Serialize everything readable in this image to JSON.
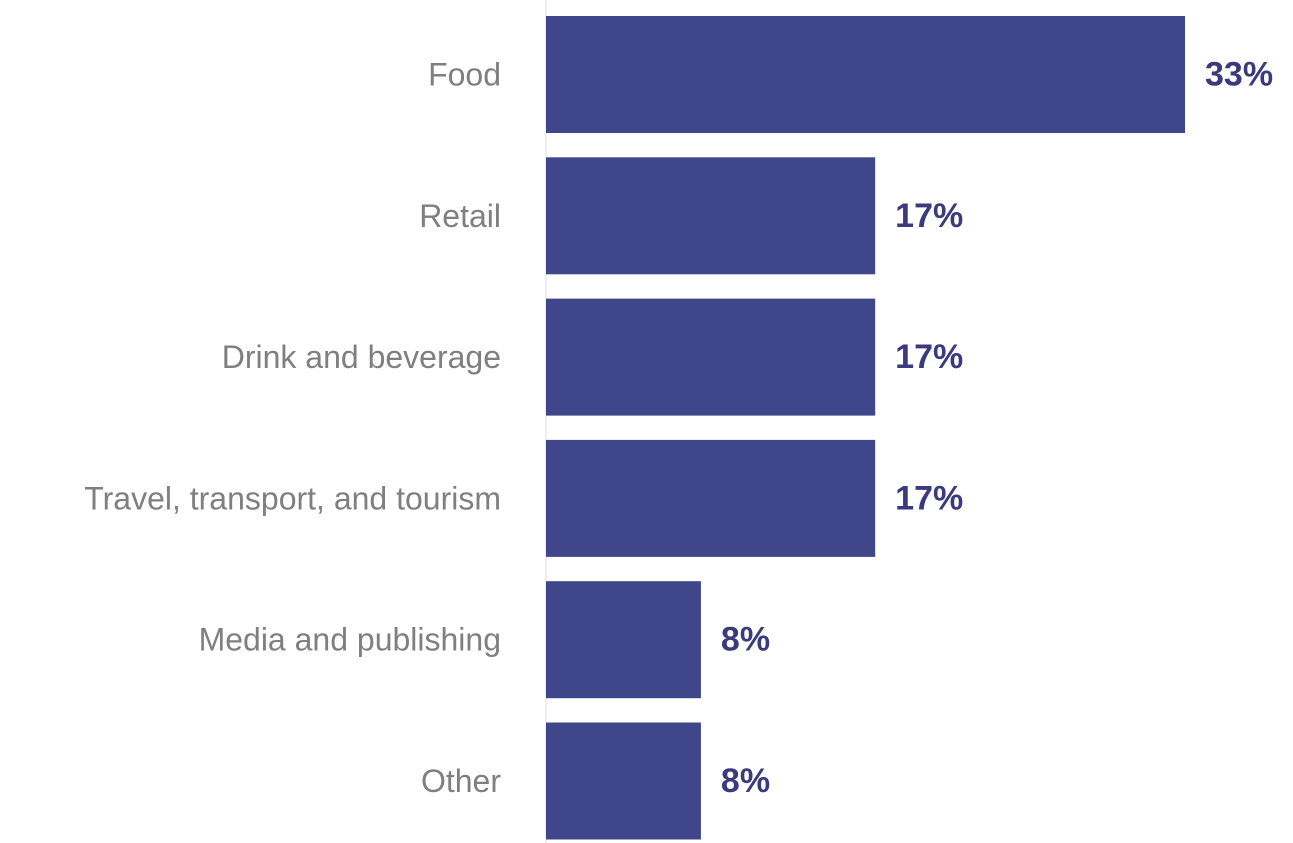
{
  "chart_data": {
    "type": "bar",
    "orientation": "horizontal",
    "categories": [
      "Food",
      "Retail",
      "Drink and beverage",
      "Travel, transport, and tourism",
      "Media and publishing",
      "Other"
    ],
    "values": [
      33,
      17,
      17,
      17,
      8,
      8
    ],
    "value_labels": [
      "33%",
      "17%",
      "17%",
      "17%",
      "8%",
      "8%"
    ],
    "unit": "%",
    "xlim": [
      0,
      33
    ],
    "grid": false,
    "legend": "none",
    "bar_color": "#3f468a",
    "label_color": "#7f7f7f",
    "value_label_color": "#3b3a7e",
    "axis_line_color": "#e6e6ee"
  }
}
